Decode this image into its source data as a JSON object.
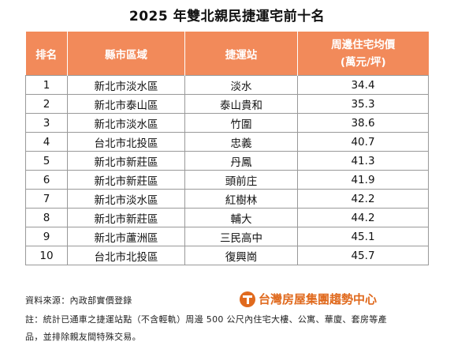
{
  "title": "2025 年雙北親民捷運宅前十名",
  "table": {
    "headers": [
      "排名",
      "縣市區域",
      "捷運站",
      "周邊住宅均價",
      "(萬元/坪)"
    ],
    "rows": [
      {
        "rank": "1",
        "area": "新北市淡水區",
        "station": "淡水",
        "price": "34.4"
      },
      {
        "rank": "2",
        "area": "新北市泰山區",
        "station": "泰山貴和",
        "price": "35.3"
      },
      {
        "rank": "3",
        "area": "新北市淡水區",
        "station": "竹圍",
        "price": "38.6"
      },
      {
        "rank": "4",
        "area": "台北市北投區",
        "station": "忠義",
        "price": "40.7"
      },
      {
        "rank": "5",
        "area": "新北市新莊區",
        "station": "丹鳳",
        "price": "41.3"
      },
      {
        "rank": "6",
        "area": "新北市新莊區",
        "station": "頭前庄",
        "price": "41.9"
      },
      {
        "rank": "7",
        "area": "新北市淡水區",
        "station": "紅樹林",
        "price": "42.2"
      },
      {
        "rank": "8",
        "area": "新北市新莊區",
        "station": "輔大",
        "price": "44.2"
      },
      {
        "rank": "9",
        "area": "新北市蘆洲區",
        "station": "三民高中",
        "price": "45.1"
      },
      {
        "rank": "10",
        "area": "台北市北投區",
        "station": "復興崗",
        "price": "45.7"
      }
    ]
  },
  "footer": {
    "source": "資料來源：內政部實價登錄",
    "note_line1": "註：統計已通車之捷運站點（不含輕軌）周邊 500 公尺內住宅大樓、公寓、華廈、套房等產",
    "note_line2": "品，並排除親友間特殊交易。"
  },
  "logo": {
    "text": "台灣房屋集團趨勢中心",
    "icon": "taiwan-realty-logo-icon",
    "color": "#e06a1e"
  },
  "colors": {
    "header_bg": "#f28a5a",
    "header_text": "#ffffff",
    "border": "#999999"
  }
}
